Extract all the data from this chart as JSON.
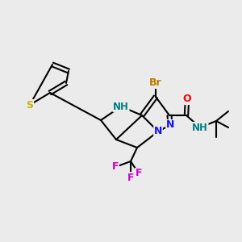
{
  "bg_color": "#ebebeb",
  "bond_color": "#000000",
  "bond_width": 1.5,
  "atom_colors": {
    "N": "#1010ff",
    "S": "#c8b400",
    "Br": "#c07800",
    "F": "#cc00cc",
    "O": "#ff0000",
    "NH": "#008080",
    "C": "#000000"
  },
  "font_size": 8.0
}
